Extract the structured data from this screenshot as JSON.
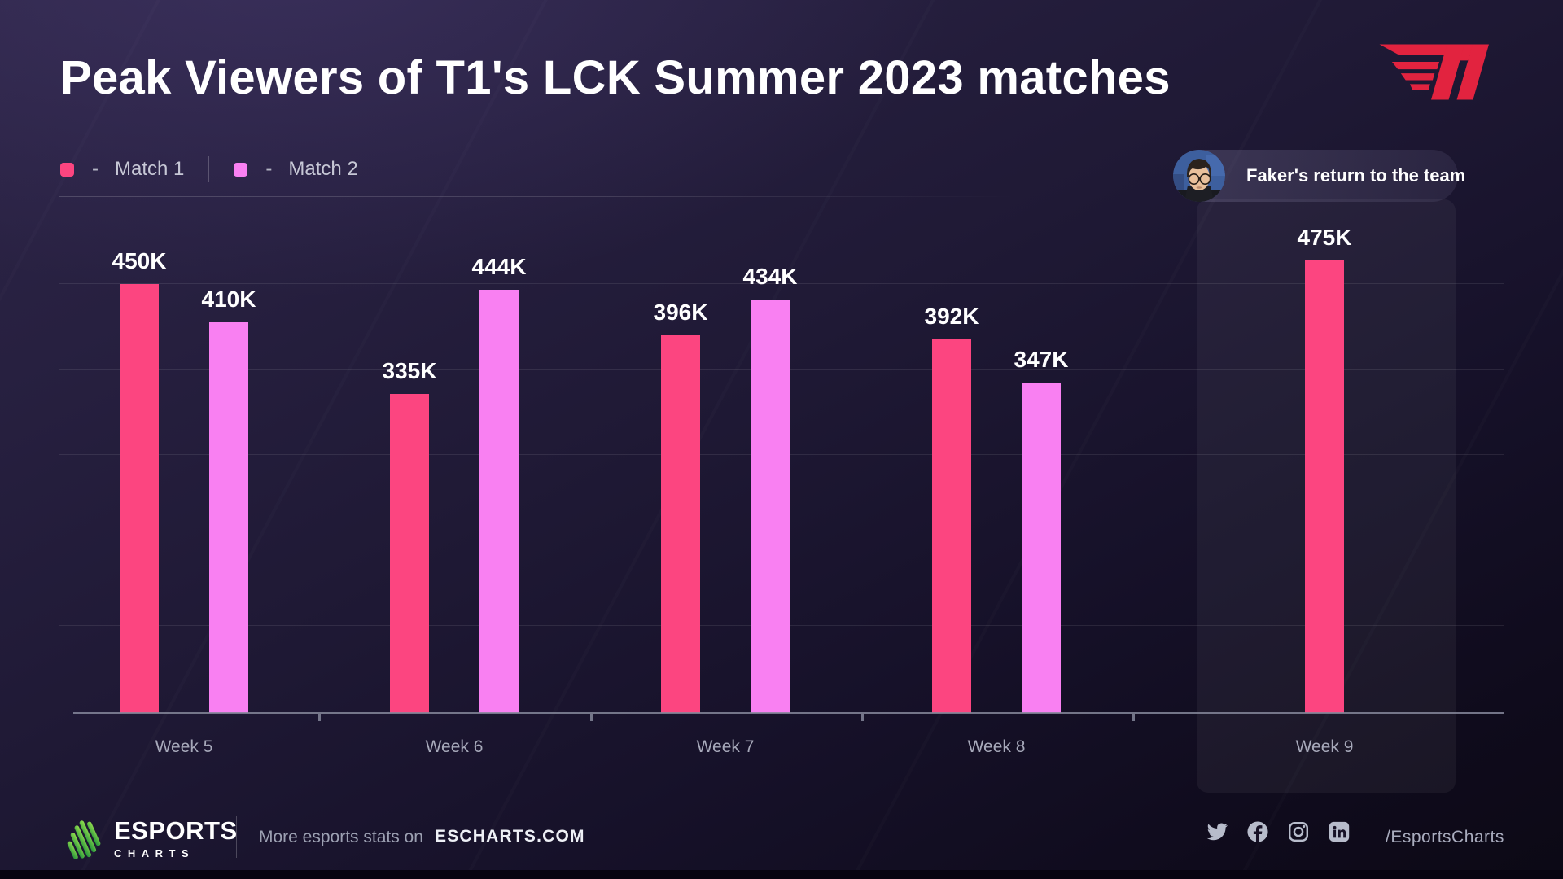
{
  "header": {
    "title": "Peak Viewers of T1's LCK Summer 2023 matches"
  },
  "legend": {
    "separator": "-",
    "items": [
      {
        "label": "Match 1",
        "color": "#FC4580"
      },
      {
        "label": "Match 2",
        "color": "#F980F2"
      }
    ]
  },
  "annotation": {
    "text": "Faker's return to the team"
  },
  "chart_data": {
    "type": "bar",
    "title": "Peak Viewers of T1's LCK Summer 2023 matches",
    "categories": [
      "Week 5",
      "Week 6",
      "Week 7",
      "Week 8",
      "Week 9"
    ],
    "series": [
      {
        "name": "Match 1",
        "color": "#FC4580",
        "values": [
          450,
          335,
          396,
          392,
          475
        ]
      },
      {
        "name": "Match 2",
        "color": "#F980F2",
        "values": [
          410,
          444,
          434,
          347,
          null
        ]
      }
    ],
    "unit": "K",
    "value_labels": [
      [
        "450K",
        "410K"
      ],
      [
        "335K",
        "444K"
      ],
      [
        "396K",
        "434K"
      ],
      [
        "392K",
        "347K"
      ],
      [
        "475K",
        null
      ]
    ],
    "ylim": [
      0,
      540
    ],
    "grid": true,
    "legend_position": "top-left",
    "highlight": {
      "category": "Week 9",
      "note": "Faker's return to the team"
    }
  },
  "branding": {
    "t1_color": "#E2233F",
    "esports_green": "#4CC44A"
  },
  "footer": {
    "brand_top": "ESPORTS",
    "brand_bottom": "CHARTS",
    "tagline": "More esports stats on",
    "site": "ESCHARTS.COM",
    "handle": "/EsportsCharts",
    "socials": [
      "twitter",
      "facebook",
      "instagram",
      "linkedin"
    ]
  }
}
